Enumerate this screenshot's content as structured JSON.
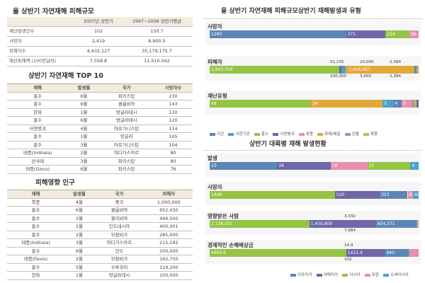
{
  "left": {
    "summary": {
      "title": "올 상반기 자연재해 피해규모",
      "headers": [
        "",
        "2007년 상반기",
        "1997~2006 상반기평균"
      ],
      "rows": [
        [
          "재난발생건수",
          "102",
          "150.7"
        ],
        [
          "사망자",
          "2,419",
          "8,900.5"
        ],
        [
          "피해자수",
          "4,432,127",
          "35,179,175.7"
        ],
        [
          "재산피해액 (100만달러)",
          "7,558.8",
          "11,510.042"
        ]
      ]
    },
    "top10": {
      "title": "상반기 자연재해 TOP 10",
      "headers": [
        "재해",
        "발생월",
        "국가",
        "사망자수"
      ],
      "rows": [
        [
          "홍수",
          "6월",
          "파키스탄",
          "230"
        ],
        [
          "홍수",
          "6월",
          "콜롬비아",
          "143"
        ],
        [
          "한파",
          "1월",
          "방글라데시",
          "130"
        ],
        [
          "홍수",
          "6월",
          "방글라데시",
          "120"
        ],
        [
          "사면붕괴",
          "4월",
          "아프가니스탄",
          "114"
        ],
        [
          "홍수",
          "1월",
          "앙골라",
          "105"
        ],
        [
          "홍수",
          "3월",
          "아프가니스탄",
          "104"
        ],
        [
          "태풍(Indhala)",
          "2월",
          "마다가스카르",
          "80"
        ],
        [
          "산사태",
          "3월",
          "파키스탄",
          "80"
        ],
        [
          "태풍(Gonu)",
          "6월",
          "파키스탄",
          "76"
        ]
      ]
    },
    "affected": {
      "title": "피해영향 인구",
      "headers": [
        "재해",
        "발생월",
        "국가",
        "피해자"
      ],
      "rows": [
        [
          "폭풍",
          "4월",
          "중국",
          "1,000,000"
        ],
        [
          "홍수",
          "6월",
          "콜롬비아",
          "652,430"
        ],
        [
          "홍수",
          "2월",
          "볼리비아",
          "446,500"
        ],
        [
          "홍수",
          "2월",
          "인도네시아",
          "400,001"
        ],
        [
          "홍수",
          "2월",
          "모잠비크",
          "285,000"
        ],
        [
          "태풍(Indhala)",
          "3월",
          "마다가스카르",
          "215,182"
        ],
        [
          "홍수",
          "6월",
          "인도",
          "200,000"
        ],
        [
          "태풍(Favio)",
          "2월",
          "모잠비크",
          "162,700"
        ],
        [
          "홍수",
          "5월",
          "우루과이",
          "119,200"
        ],
        [
          "한파",
          "1월",
          "방글라데시",
          "100,000"
        ]
      ]
    }
  },
  "chart_data": [
    {
      "type": "bar",
      "stacked": true,
      "orientation": "horizontal",
      "title": "올 상반기 자연재해 피해규모상반기 재해발생과 유형",
      "series_names": [
        "지진",
        "극한기온",
        "홍수",
        "사면붕괴",
        "폭풍",
        "화재/해일",
        "산불",
        "폭풍"
      ],
      "colors": [
        "#5b86b5",
        "#4aa3c8",
        "#93c444",
        "#6d68a6",
        "#e88fb0",
        "#e3a83a",
        "#a78bc1",
        "#c9b64a"
      ],
      "rows": [
        {
          "label": "사망자",
          "segments": [
            {
              "value": 1280,
              "text": "1280",
              "color": "#5b86b5"
            },
            {
              "value": 371,
              "text": "371",
              "color": "#6d68a6"
            },
            {
              "value": 224,
              "text": "224",
              "color": "#93c444"
            },
            {
              "value": 86,
              "text": "86",
              "color": "#e88fb0"
            }
          ],
          "annotations": []
        },
        {
          "label": "피해자",
          "segments": [
            {
              "value": 2803329,
              "text": "2,803,329",
              "color": "#93c444"
            },
            {
              "value": 51235,
              "text": "",
              "color": "#6d68a6"
            },
            {
              "value": 100000,
              "text": "",
              "color": "#4aa3c8"
            },
            {
              "value": 20000,
              "text": "",
              "color": "#e3a83a"
            },
            {
              "value": 1456457,
              "text": "1,456,457",
              "color": "#e3a83a"
            },
            {
              "value": 3000,
              "text": "",
              "color": "#5b86b5"
            },
            {
              "value": 2384,
              "text": "",
              "color": "#a78bc1"
            },
            {
              "value": 2384,
              "text": "",
              "color": "#c9b64a"
            }
          ],
          "annotations": [
            "51,235",
            "100,000",
            "20,000",
            "3,000",
            "2,384",
            "2,384"
          ]
        },
        {
          "label": "재난유형",
          "segments": [
            {
              "value": 48,
              "text": "48",
              "color": "#93c444"
            },
            {
              "value": 34,
              "text": "34",
              "color": "#e3a83a"
            },
            {
              "value": 5,
              "text": "5",
              "color": "#4aa3c8"
            },
            {
              "value": 4,
              "text": "4",
              "color": "#5b86b5"
            },
            {
              "value": 5,
              "text": "5",
              "color": "#e88fb0"
            },
            {
              "value": 1,
              "text": "1",
              "color": "#a78bc1"
            },
            {
              "value": 1,
              "text": "1",
              "color": "#c9b64a"
            },
            {
              "value": 1,
              "text": "1",
              "color": "#6d68a6"
            }
          ],
          "annotations": []
        }
      ],
      "legend": [
        "지진",
        "극한기온",
        "홍수",
        "사면붕괴",
        "폭풍",
        "화재/해일",
        "산불",
        "폭풍"
      ]
    },
    {
      "type": "bar",
      "stacked": true,
      "orientation": "horizontal",
      "title": "상반기 대륙별 재해 발생현황",
      "rows": [
        {
          "label": "발생",
          "segments": [
            {
              "value": 33,
              "text": "33",
              "color": "#5b86b5"
            },
            {
              "value": 26,
              "text": "26",
              "color": "#6d68a6"
            },
            {
              "value": 18,
              "text": "18",
              "color": "#e88fb0"
            },
            {
              "value": 21,
              "text": "21",
              "color": "#93c444"
            },
            {
              "value": 4,
              "text": "4",
              "color": "#4aa3c8"
            }
          ],
          "annotations": []
        },
        {
          "label": "사망자",
          "segments": [
            {
              "value": 1449,
              "text": "1449",
              "color": "#93c444"
            },
            {
              "value": 520,
              "text": "520",
              "color": "#6d68a6"
            },
            {
              "value": 323,
              "text": "323",
              "color": "#5b86b5"
            },
            {
              "value": 62,
              "text": "62",
              "color": "#e88fb0"
            },
            {
              "value": 65,
              "text": "65",
              "color": "#4aa3c8"
            }
          ],
          "annotations": []
        },
        {
          "label": "영향받은 사람",
          "segments": [
            {
              "value": 2136031,
              "text": "2,136,031",
              "color": "#93c444"
            },
            {
              "value": 1430809,
              "text": "1,430,809",
              "color": "#6d68a6"
            },
            {
              "value": 854371,
              "text": "854,371",
              "color": "#5b86b5"
            },
            {
              "value": 7684,
              "text": "",
              "color": "#4aa3c8"
            },
            {
              "value": 3332,
              "text": "",
              "color": "#e88fb0"
            }
          ],
          "annotations": [
            "3,332",
            "7,684"
          ]
        },
        {
          "label": "경제적인 손해배상금",
          "segments": [
            {
              "value": 4960.6,
              "text": "4960.6",
              "color": "#93c444"
            },
            {
              "value": 1412.4,
              "text": "1412.4",
              "color": "#6d68a6"
            },
            {
              "value": 840,
              "text": "840",
              "color": "#5b86b5"
            },
            {
              "value": 14.9,
              "text": "",
              "color": "#4aa3c8"
            },
            {
              "value": 332,
              "text": "",
              "color": "#e88fb0"
            }
          ],
          "annotations": [
            "14.9",
            "332"
          ]
        }
      ],
      "legend": [
        "아프리카",
        "아메리카",
        "아시아",
        "유럽",
        "오세아니아"
      ],
      "legend_colors": [
        "#5b86b5",
        "#6d68a6",
        "#93c444",
        "#e88fb0",
        "#4aa3c8"
      ]
    }
  ]
}
